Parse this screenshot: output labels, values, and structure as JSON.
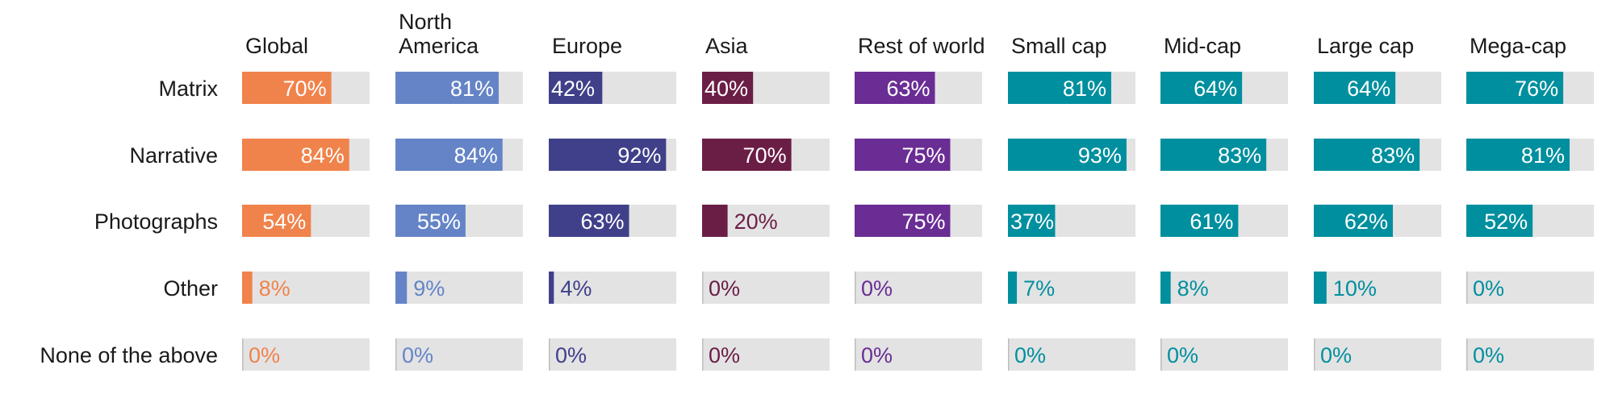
{
  "chart_data": {
    "type": "bar",
    "orientation": "horizontal",
    "style": "small-multiples",
    "xlim": [
      0,
      100
    ],
    "rows": [
      "Matrix",
      "Narrative",
      "Photographs",
      "Other",
      "None of the above"
    ],
    "series": [
      {
        "name": "Global",
        "color": "#F0834B",
        "values": [
          70,
          84,
          54,
          8,
          0
        ],
        "labels": [
          "70%",
          "84%",
          "54%",
          "8%",
          "0%"
        ]
      },
      {
        "name": "North America",
        "color": "#6584C7",
        "values": [
          81,
          84,
          55,
          9,
          0
        ],
        "labels": [
          "81%",
          "84%",
          "55%",
          "9%",
          "0%"
        ]
      },
      {
        "name": "Europe",
        "color": "#40408A",
        "values": [
          42,
          92,
          63,
          4,
          0
        ],
        "labels": [
          "42%",
          "92%",
          "63%",
          "4%",
          "0%"
        ]
      },
      {
        "name": "Asia",
        "color": "#6B1E45",
        "values": [
          40,
          70,
          20,
          0,
          0
        ],
        "labels": [
          "40%",
          "70%",
          "20%",
          "0%",
          "0%"
        ]
      },
      {
        "name": "Rest of world",
        "color": "#6A2D94",
        "values": [
          63,
          75,
          75,
          0,
          0
        ],
        "labels": [
          "63%",
          "75%",
          "75%",
          "0%",
          "0%"
        ]
      },
      {
        "name": "Small cap",
        "color": "#008F9E",
        "values": [
          81,
          93,
          37,
          7,
          0
        ],
        "labels": [
          "81%",
          "93%",
          "37%",
          "7%",
          "0%"
        ]
      },
      {
        "name": "Mid-cap",
        "color": "#008F9E",
        "values": [
          64,
          83,
          61,
          8,
          0
        ],
        "labels": [
          "64%",
          "83%",
          "61%",
          "8%",
          "0%"
        ]
      },
      {
        "name": "Large cap",
        "color": "#008F9E",
        "values": [
          64,
          83,
          62,
          10,
          0
        ],
        "labels": [
          "64%",
          "83%",
          "62%",
          "10%",
          "0%"
        ]
      },
      {
        "name": "Mega-cap",
        "color": "#008F9E",
        "values": [
          76,
          81,
          52,
          0,
          0
        ],
        "labels": [
          "76%",
          "81%",
          "52%",
          "0%",
          "0%"
        ]
      }
    ],
    "track_color": "#E3E3E4",
    "label_color": "#ffffff"
  }
}
